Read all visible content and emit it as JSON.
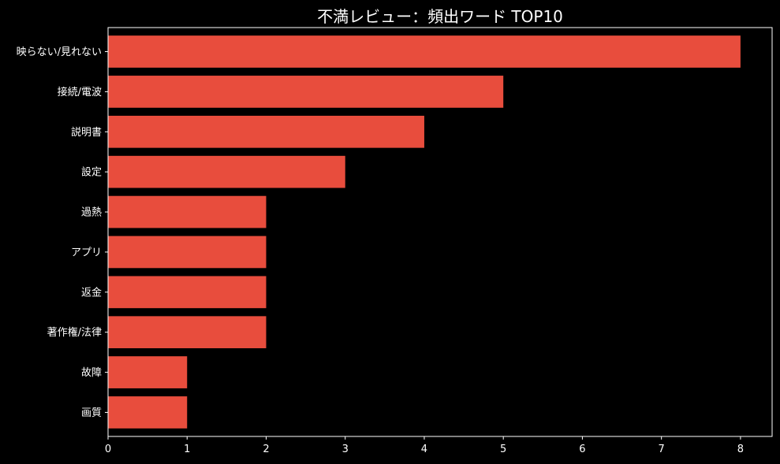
{
  "chart_data": {
    "type": "bar",
    "orientation": "horizontal",
    "title": "不満レビュー：頻出ワード TOP10",
    "xlabel": "",
    "ylabel": "",
    "categories": [
      "映らない/見れない",
      "接続/電波",
      "説明書",
      "設定",
      "過熱",
      "アプリ",
      "返金",
      "著作権/法律",
      "故障",
      "画質"
    ],
    "values": [
      8,
      5,
      4,
      3,
      2,
      2,
      2,
      2,
      1,
      1
    ],
    "xlim": [
      0,
      8.4
    ],
    "xticks": [
      "0",
      "1",
      "2",
      "3",
      "4",
      "5",
      "6",
      "7",
      "8"
    ],
    "grid": false,
    "legend": "none"
  },
  "colors": {
    "background": "#000000",
    "bar": "#e84d3d",
    "axes": "#ffffff",
    "text": "#ffffff"
  }
}
